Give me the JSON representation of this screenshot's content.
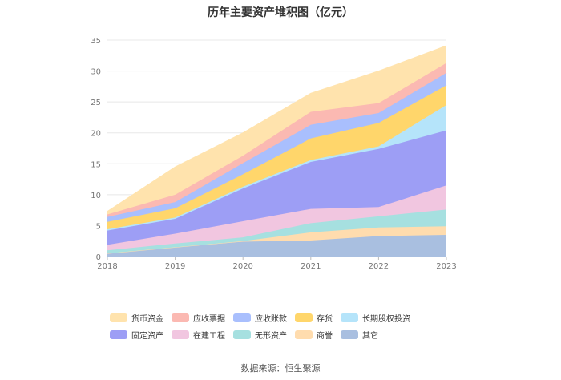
{
  "chart_data": {
    "type": "area",
    "title": "历年主要资产堆积图（亿元）",
    "categories": [
      "2018",
      "2019",
      "2020",
      "2021",
      "2022",
      "2023"
    ],
    "y_ticks": [
      "0",
      "5",
      "10",
      "15",
      "20",
      "25",
      "30",
      "35"
    ],
    "ylim": [
      0,
      35
    ],
    "stacked": true,
    "series": [
      {
        "name": "其它",
        "color": "#a9bfe0",
        "values": [
          0.5,
          1.5,
          2.4,
          2.6,
          3.3,
          3.5
        ]
      },
      {
        "name": "商誉",
        "color": "#ffdcae",
        "values": [
          0.0,
          0.0,
          0.1,
          1.3,
          1.4,
          1.4
        ]
      },
      {
        "name": "无形资产",
        "color": "#a6e0e0",
        "values": [
          0.5,
          0.6,
          0.6,
          1.5,
          1.8,
          2.7
        ]
      },
      {
        "name": "在建工程",
        "color": "#f1c6e0",
        "values": [
          0.9,
          1.6,
          2.6,
          2.3,
          1.5,
          3.9
        ]
      },
      {
        "name": "固定资产",
        "color": "#9d9ef5",
        "values": [
          2.3,
          2.4,
          5.3,
          7.6,
          9.4,
          8.9
        ]
      },
      {
        "name": "长期股权投资",
        "color": "#b5e4fa",
        "values": [
          0.2,
          0.2,
          0.3,
          0.3,
          0.4,
          4.1
        ]
      },
      {
        "name": "存货",
        "color": "#ffd66b",
        "values": [
          1.2,
          1.5,
          2.0,
          3.5,
          3.8,
          3.2
        ]
      },
      {
        "name": "应收账款",
        "color": "#a9bffd",
        "values": [
          0.8,
          1.0,
          1.8,
          2.2,
          1.6,
          2.0
        ]
      },
      {
        "name": "应收票据",
        "color": "#fbb9b2",
        "values": [
          0.4,
          1.2,
          1.2,
          2.1,
          1.6,
          1.6
        ]
      },
      {
        "name": "货币资金",
        "color": "#ffe3ad",
        "values": [
          0.5,
          4.5,
          3.7,
          3.0,
          5.2,
          2.8
        ]
      }
    ],
    "legend_order": [
      "货币资金",
      "应收票据",
      "应收账款",
      "存货",
      "长期股权投资",
      "固定资产",
      "在建工程",
      "无形资产",
      "商誉",
      "其它"
    ],
    "legend_position": "bottom",
    "grid": true
  },
  "footer": {
    "source": "数据来源：恒生聚源"
  }
}
